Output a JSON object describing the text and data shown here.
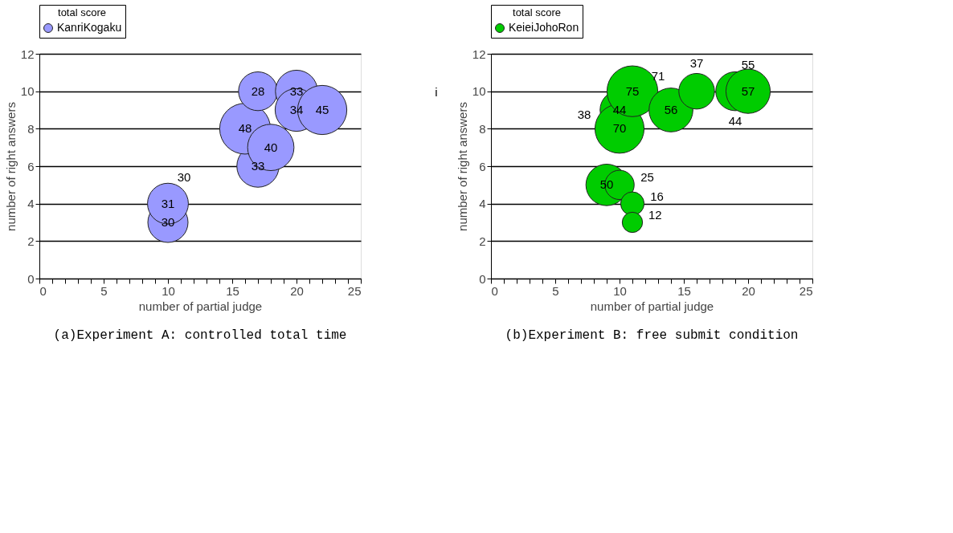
{
  "chart_data": [
    {
      "type": "bubble",
      "legend_title": "total score",
      "xlabel": "number of partial judge",
      "ylabel": "number of right answers",
      "xlim": [
        0,
        25
      ],
      "ylim": [
        0,
        12
      ],
      "xticks": [
        0,
        {
          "value": 1,
          "label": null
        },
        {
          "value": 2,
          "label": null
        },
        {
          "value": 3,
          "label": null
        },
        {
          "value": 4,
          "label": null
        },
        5,
        {
          "value": 6,
          "label": null
        },
        {
          "value": 7,
          "label": null
        },
        {
          "value": 8,
          "label": null
        },
        {
          "value": 9,
          "label": null
        },
        10,
        {
          "value": 11,
          "label": null
        },
        {
          "value": 12,
          "label": null
        },
        {
          "value": 13,
          "label": null
        },
        {
          "value": 14,
          "label": null
        },
        15,
        {
          "value": 16,
          "label": null
        },
        {
          "value": 17,
          "label": null
        },
        {
          "value": 18,
          "label": null
        },
        {
          "value": 19,
          "label": null
        },
        20,
        {
          "value": 21,
          "label": null
        },
        {
          "value": 22,
          "label": null
        },
        {
          "value": 23,
          "label": null
        },
        {
          "value": 24,
          "label": null
        },
        25
      ],
      "yticks": [
        0,
        2,
        4,
        6,
        8,
        10,
        12
      ],
      "grid": "y",
      "legend": "top",
      "series": [
        {
          "name": "KanriKogaku",
          "color": "#9999ff",
          "x": [
            10,
            10,
            17,
            16,
            18,
            17,
            20,
            20,
            22
          ],
          "values": [
            3,
            4,
            6,
            8,
            7,
            10,
            10,
            9,
            9
          ],
          "sizes": [
            30,
            31,
            33,
            48,
            40,
            28,
            33,
            34,
            45
          ],
          "value_labels": [
            "30",
            "31",
            "33",
            "48",
            "40",
            "28",
            "33",
            "34",
            "45"
          ]
        }
      ],
      "annotations": [
        "(a)Experiment A: controlled total time",
        "30"
      ]
    },
    {
      "type": "bubble",
      "legend_title": "total score",
      "xlabel": "number of partial judge",
      "ylabel": "number of right answers",
      "xlim": [
        0,
        25
      ],
      "ylim": [
        0,
        12
      ],
      "xticks": [
        0,
        {
          "value": 1,
          "label": null
        },
        {
          "value": 2,
          "label": null
        },
        {
          "value": 3,
          "label": null
        },
        {
          "value": 4,
          "label": null
        },
        5,
        {
          "value": 6,
          "label": null
        },
        {
          "value": 7,
          "label": null
        },
        {
          "value": 8,
          "label": null
        },
        {
          "value": 9,
          "label": null
        },
        10,
        {
          "value": 11,
          "label": null
        },
        {
          "value": 12,
          "label": null
        },
        {
          "value": 13,
          "label": null
        },
        {
          "value": 14,
          "label": null
        },
        15,
        {
          "value": 16,
          "label": null
        },
        {
          "value": 17,
          "label": null
        },
        {
          "value": 18,
          "label": null
        },
        {
          "value": 19,
          "label": null
        },
        20,
        {
          "value": 21,
          "label": null
        },
        {
          "value": 22,
          "label": null
        },
        {
          "value": 23,
          "label": null
        },
        {
          "value": 24,
          "label": null
        },
        25
      ],
      "yticks": [
        0,
        2,
        4,
        6,
        8,
        10,
        12
      ],
      "grid": "y",
      "legend": "top",
      "series": [
        {
          "name": "KeieiJohoRon",
          "color": "#00cc00",
          "x": [
            10,
            10,
            11,
            14,
            16,
            19,
            20,
            9,
            10,
            11,
            11
          ],
          "values": [
            9,
            8,
            10,
            9,
            10,
            10,
            10,
            5,
            5,
            4,
            3
          ],
          "sizes": [
            44,
            70,
            75,
            56,
            37,
            44,
            57,
            50,
            25,
            16,
            12
          ],
          "value_labels": [
            "44",
            "70",
            "75",
            "56",
            "37",
            "44",
            "57",
            "50",
            "25",
            "16",
            "12"
          ]
        }
      ],
      "annotations": [
        "(b)Experiment B: free submit condition",
        "i",
        "38",
        "71",
        "55"
      ]
    }
  ]
}
